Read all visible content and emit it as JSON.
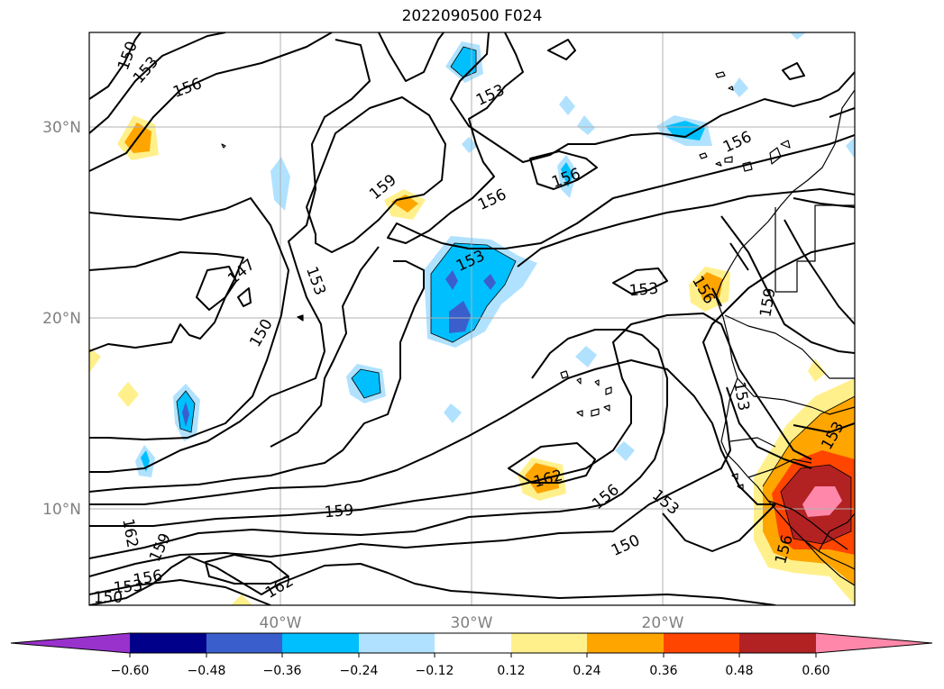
{
  "title": "2022090500 F024",
  "map": {
    "lat_labels": [
      "30°N",
      "20°N",
      "10°N"
    ],
    "lon_labels": [
      "40°W",
      "30°W",
      "20°W"
    ],
    "contour_labels": [
      "150",
      "153",
      "156",
      "159",
      "153",
      "156",
      "159",
      "153",
      "156",
      "147",
      "153",
      "150",
      "153",
      "159",
      "156",
      "156",
      "153",
      "162",
      "156",
      "153",
      "150",
      "159",
      "162",
      "159",
      "156",
      "153",
      "150",
      "156",
      "153"
    ]
  },
  "colorbar": {
    "colors": [
      "#9932cc",
      "#00008b",
      "#3a5fcd",
      "#00bfff",
      "#b0e2ff",
      "#ffffff",
      "#fff08c",
      "#ffa500",
      "#ff4500",
      "#b22222",
      "#ff88aa"
    ],
    "labels": [
      "−0.60",
      "−0.48",
      "−0.36",
      "−0.24",
      "−0.12",
      "0.12",
      "0.24",
      "0.36",
      "0.48",
      "0.60"
    ]
  }
}
